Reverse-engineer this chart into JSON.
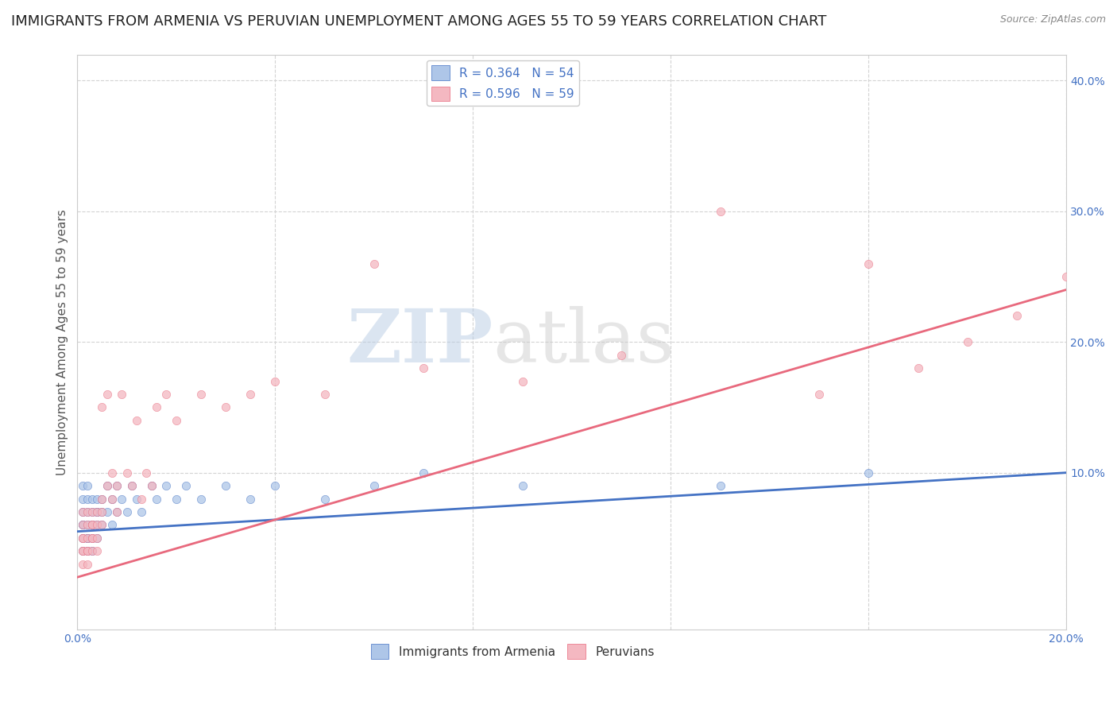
{
  "title": "IMMIGRANTS FROM ARMENIA VS PERUVIAN UNEMPLOYMENT AMONG AGES 55 TO 59 YEARS CORRELATION CHART",
  "source": "Source: ZipAtlas.com",
  "ylabel": "Unemployment Among Ages 55 to 59 years",
  "xlim": [
    0.0,
    0.2
  ],
  "ylim": [
    -0.02,
    0.42
  ],
  "xticks": [
    0.0,
    0.04,
    0.08,
    0.12,
    0.16,
    0.2
  ],
  "xtick_labels": [
    "0.0%",
    "",
    "",
    "",
    "",
    "20.0%"
  ],
  "yticks": [
    0.1,
    0.2,
    0.3,
    0.4
  ],
  "ytick_labels": [
    "10.0%",
    "20.0%",
    "30.0%",
    "40.0%"
  ],
  "legend_r_armenia": "R = 0.364",
  "legend_n_armenia": "N = 54",
  "legend_r_peruvian": "R = 0.596",
  "legend_n_peruvian": "N = 59",
  "armenia_color": "#aec6e8",
  "armenia_line_color": "#4472c4",
  "peruvian_color": "#f4b8c1",
  "peruvian_line_color": "#e8697d",
  "scatter_alpha": 0.75,
  "scatter_size": 55,
  "background_color": "#ffffff",
  "grid_color": "#d3d3d3",
  "title_fontsize": 13,
  "axis_label_fontsize": 11,
  "tick_fontsize": 10,
  "watermark_zip": "ZIP",
  "watermark_atlas": "atlas",
  "armenia_scatter_x": [
    0.001,
    0.001,
    0.001,
    0.001,
    0.001,
    0.001,
    0.001,
    0.002,
    0.002,
    0.002,
    0.002,
    0.002,
    0.002,
    0.002,
    0.003,
    0.003,
    0.003,
    0.003,
    0.003,
    0.003,
    0.004,
    0.004,
    0.004,
    0.004,
    0.004,
    0.005,
    0.005,
    0.005,
    0.006,
    0.006,
    0.007,
    0.007,
    0.008,
    0.008,
    0.009,
    0.01,
    0.011,
    0.012,
    0.013,
    0.015,
    0.016,
    0.018,
    0.02,
    0.022,
    0.025,
    0.03,
    0.035,
    0.04,
    0.05,
    0.06,
    0.07,
    0.09,
    0.13,
    0.16
  ],
  "armenia_scatter_y": [
    0.05,
    0.06,
    0.07,
    0.08,
    0.04,
    0.09,
    0.06,
    0.05,
    0.07,
    0.06,
    0.08,
    0.04,
    0.09,
    0.05,
    0.06,
    0.07,
    0.05,
    0.08,
    0.04,
    0.06,
    0.07,
    0.05,
    0.08,
    0.06,
    0.07,
    0.06,
    0.08,
    0.07,
    0.09,
    0.07,
    0.08,
    0.06,
    0.07,
    0.09,
    0.08,
    0.07,
    0.09,
    0.08,
    0.07,
    0.09,
    0.08,
    0.09,
    0.08,
    0.09,
    0.08,
    0.09,
    0.08,
    0.09,
    0.08,
    0.09,
    0.1,
    0.09,
    0.09,
    0.1
  ],
  "peruvian_scatter_x": [
    0.001,
    0.001,
    0.001,
    0.001,
    0.001,
    0.001,
    0.001,
    0.002,
    0.002,
    0.002,
    0.002,
    0.002,
    0.002,
    0.003,
    0.003,
    0.003,
    0.003,
    0.003,
    0.003,
    0.004,
    0.004,
    0.004,
    0.004,
    0.005,
    0.005,
    0.005,
    0.005,
    0.006,
    0.006,
    0.007,
    0.007,
    0.008,
    0.008,
    0.009,
    0.01,
    0.011,
    0.012,
    0.013,
    0.014,
    0.015,
    0.016,
    0.018,
    0.02,
    0.025,
    0.03,
    0.035,
    0.04,
    0.05,
    0.06,
    0.07,
    0.09,
    0.11,
    0.13,
    0.15,
    0.16,
    0.17,
    0.18,
    0.19,
    0.2
  ],
  "peruvian_scatter_y": [
    0.04,
    0.05,
    0.06,
    0.03,
    0.07,
    0.04,
    0.05,
    0.04,
    0.06,
    0.05,
    0.03,
    0.07,
    0.04,
    0.05,
    0.06,
    0.04,
    0.07,
    0.05,
    0.06,
    0.04,
    0.07,
    0.05,
    0.06,
    0.15,
    0.07,
    0.08,
    0.06,
    0.09,
    0.16,
    0.08,
    0.1,
    0.07,
    0.09,
    0.16,
    0.1,
    0.09,
    0.14,
    0.08,
    0.1,
    0.09,
    0.15,
    0.16,
    0.14,
    0.16,
    0.15,
    0.16,
    0.17,
    0.16,
    0.26,
    0.18,
    0.17,
    0.19,
    0.3,
    0.16,
    0.26,
    0.18,
    0.2,
    0.22,
    0.25
  ],
  "armenia_trendline_x": [
    0.0,
    0.2
  ],
  "armenia_trendline_y": [
    0.055,
    0.1
  ],
  "peruvian_trendline_x": [
    0.0,
    0.2
  ],
  "peruvian_trendline_y": [
    0.02,
    0.24
  ]
}
